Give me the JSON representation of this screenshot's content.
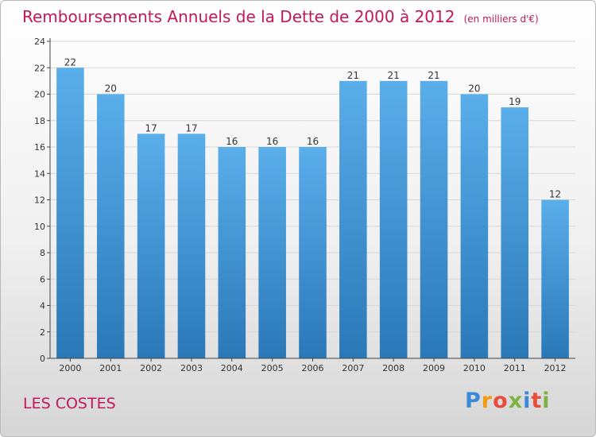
{
  "colors": {
    "title": "#c2185b",
    "bar_light": "#5aaeea",
    "bar_dark": "#2a78b8",
    "axis": "#444444",
    "grid": "#d8d8d8"
  },
  "chart_data": {
    "type": "bar",
    "title": "Remboursements Annuels de la Dette de 2000 à 2012",
    "unit": "(en milliers d'€)",
    "categories": [
      "2000",
      "2001",
      "2002",
      "2003",
      "2004",
      "2005",
      "2006",
      "2007",
      "2008",
      "2009",
      "2010",
      "2011",
      "2012"
    ],
    "values": [
      22,
      20,
      17,
      17,
      16,
      16,
      16,
      21,
      21,
      21,
      20,
      19,
      12
    ],
    "ylim": [
      0,
      24
    ],
    "yticks": [
      0,
      2,
      4,
      6,
      8,
      10,
      12,
      14,
      16,
      18,
      20,
      22,
      24
    ],
    "xlabel": "",
    "ylabel": "",
    "grid": "horizontal"
  },
  "footer": {
    "commune": "LES COSTES",
    "brand_letters": [
      {
        "ch": "P",
        "color": "#3b8ad9"
      },
      {
        "ch": "r",
        "color": "#f39c12"
      },
      {
        "ch": "o",
        "color": "#e74c3c"
      },
      {
        "ch": "x",
        "color": "#7cb342"
      },
      {
        "ch": "i",
        "color": "#3b8ad9"
      },
      {
        "ch": "t",
        "color": "#e74c3c"
      },
      {
        "ch": "i",
        "color": "#7cb342"
      }
    ]
  }
}
